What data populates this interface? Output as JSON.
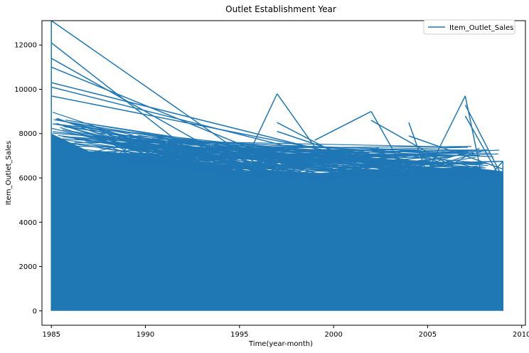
{
  "chart_data": {
    "type": "line",
    "title": "Outlet Establishment Year",
    "xlabel": "Time(year-month)",
    "ylabel": "Item_Outlet_Sales",
    "xlim": [
      1984.5,
      2010.2
    ],
    "ylim": [
      -650,
      13100
    ],
    "xticks": [
      1985,
      1990,
      1995,
      2000,
      2005,
      2010
    ],
    "yticks": [
      0,
      2000,
      4000,
      6000,
      8000,
      10000,
      12000
    ],
    "legend": {
      "position": "top-right",
      "entries": [
        "Item_Outlet_Sales"
      ]
    },
    "color": "#1f77b4",
    "grid": false,
    "series": [
      {
        "name": "Item_Outlet_Sales",
        "envelope_note": "Approximate upper envelope of dense overlapping line; filled down to ~0",
        "x": [
          1985,
          1987,
          1990,
          1993,
          1995,
          1997,
          1999,
          2002,
          2004,
          2007,
          2009
        ],
        "y_max": [
          13100,
          9000,
          8300,
          7400,
          7000,
          9800,
          7600,
          9000,
          8500,
          9700,
          6750
        ],
        "y_fill_top": [
          8000,
          7200,
          7000,
          6700,
          6300,
          6300,
          6200,
          6400,
          6300,
          6500,
          6300
        ],
        "y_min": [
          0,
          0,
          0,
          0,
          0,
          0,
          0,
          0,
          0,
          0,
          0
        ],
        "spikes": [
          [
            1985,
            13100,
            1997,
            6000
          ],
          [
            1985,
            12100,
            1993,
            6800
          ],
          [
            1985,
            11400,
            1995,
            6600
          ],
          [
            1985,
            11000,
            1998,
            6500
          ],
          [
            1985,
            10300,
            2002,
            6700
          ],
          [
            1985,
            10100,
            2000,
            6900
          ],
          [
            1985,
            9700,
            2004,
            6500
          ],
          [
            1995,
            6200,
            1997,
            9800
          ],
          [
            1997,
            9800,
            2000,
            6200
          ],
          [
            1997,
            8500,
            2002,
            6300
          ],
          [
            1997,
            8100,
            2004,
            6100
          ],
          [
            1999,
            7700,
            2002,
            9000
          ],
          [
            2002,
            9000,
            2004,
            6000
          ],
          [
            2002,
            8600,
            2007,
            6200
          ],
          [
            2004,
            8500,
            2005,
            6100
          ],
          [
            2004,
            7900,
            2009,
            6400
          ],
          [
            2005,
            6300,
            2007,
            9700
          ],
          [
            2007,
            9700,
            2008,
            5600
          ],
          [
            2007,
            9300,
            2009,
            6000
          ],
          [
            2007,
            8800,
            2009,
            5800
          ],
          [
            2008,
            5800,
            2009,
            6750
          ],
          [
            2002,
            6600,
            2009,
            6750
          ]
        ]
      }
    ]
  }
}
